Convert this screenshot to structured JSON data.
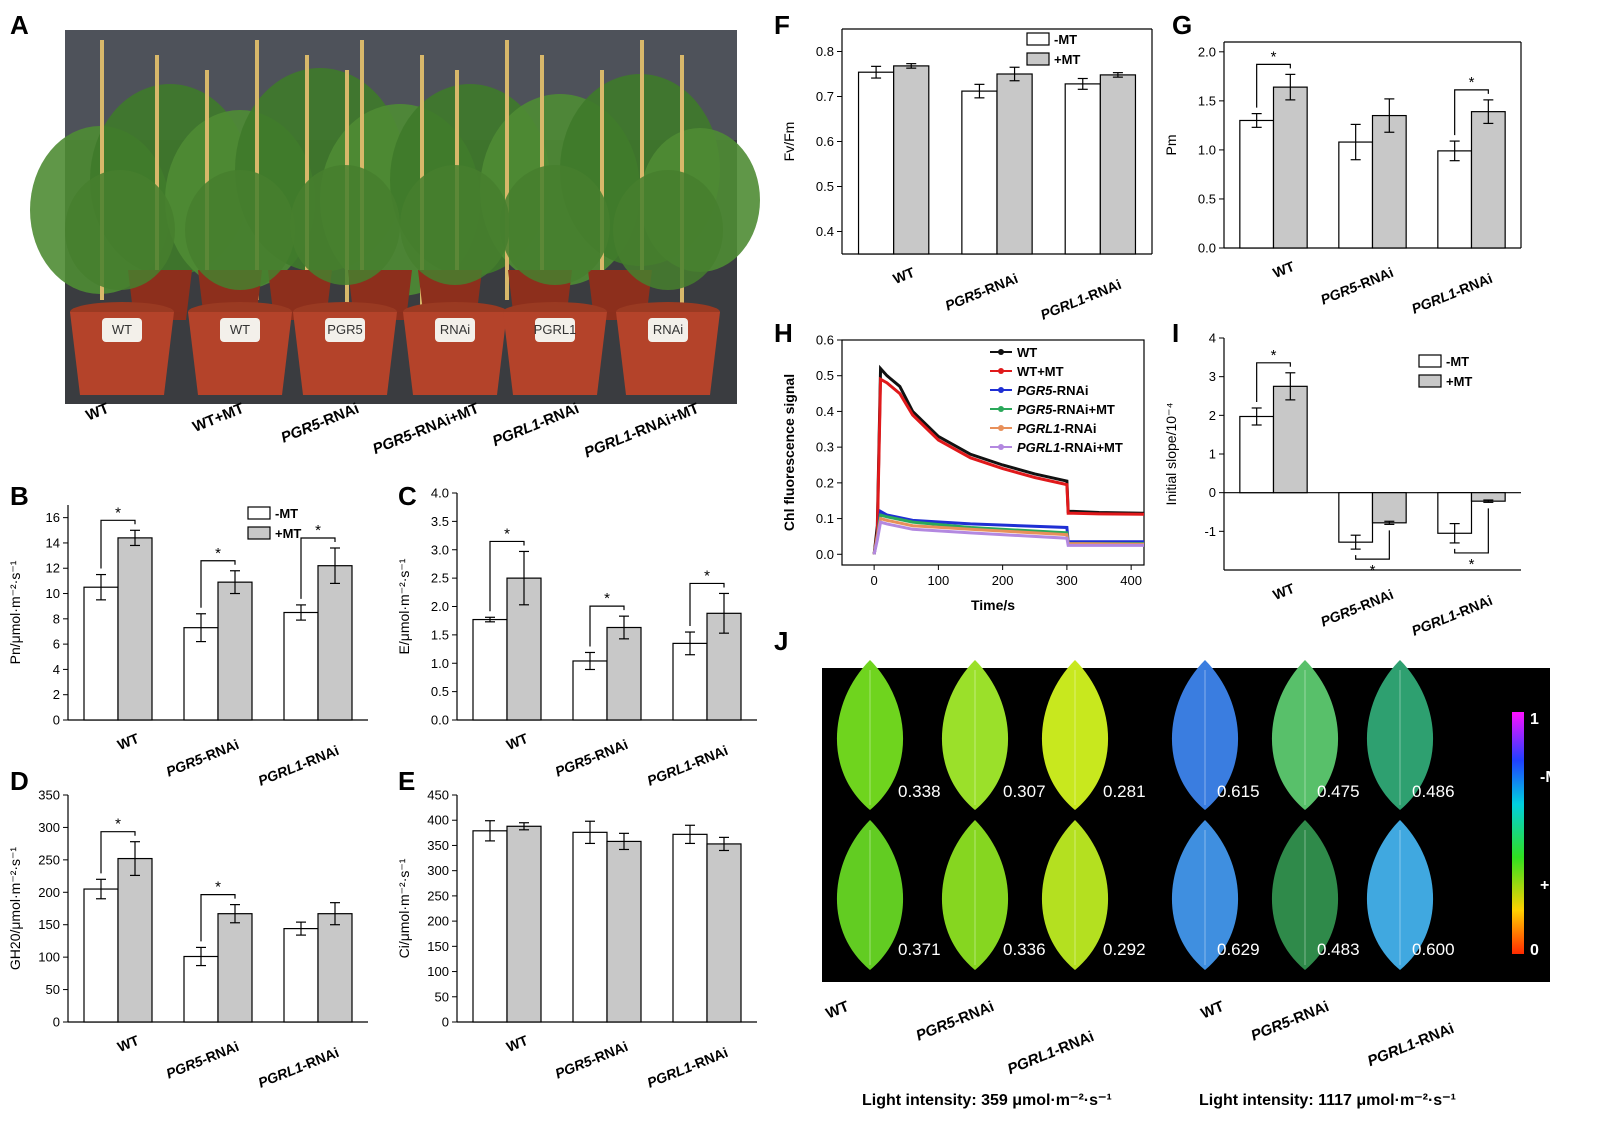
{
  "figure": {
    "panel_labels": [
      "A",
      "B",
      "C",
      "D",
      "E",
      "F",
      "G",
      "H",
      "I",
      "J"
    ],
    "legend_labels": [
      "-MT",
      "+MT"
    ],
    "photo_labels": [
      "WT",
      "WT+MT",
      "PGR5-RNAi",
      "PGR5-RNAi+MT",
      "PGRL1-RNAi",
      "PGRL1-RNAi+MT"
    ],
    "photo_pot_tags": [
      "WT",
      "WT",
      "PGR5",
      "RNAi",
      "PGRL1",
      "RNAi"
    ],
    "genotypes": [
      "WT",
      "PGR5-RNAi",
      "PGRL1-RNAi"
    ],
    "significance_mark": "*",
    "panelJ": {
      "scale_max_label": "1",
      "scale_min_label": "0",
      "scale_top_label": "-MT",
      "scale_bottom_label": "+MT",
      "light_left": "Light intensity: 359 μmol·m⁻²·s⁻¹",
      "light_right": "Light intensity: 1117 μmol·m⁻²·s⁻¹",
      "x_labels": [
        "WT",
        "PGR5-RNAi",
        "PGRL1-RNAi",
        "WT",
        "PGR5-RNAi",
        "PGRL1-RNAi"
      ],
      "leaf_values": [
        [
          "0.338",
          "0.307",
          "0.281",
          "0.615",
          "0.475",
          "0.486"
        ],
        [
          "0.371",
          "0.336",
          "0.292",
          "0.629",
          "0.483",
          "0.600"
        ]
      ],
      "colors": {
        "background": "#000000"
      }
    }
  },
  "chart_data": [
    {
      "panel": "B",
      "type": "bar",
      "ylabel": "Pn/μmol·m⁻²·s⁻¹",
      "ylim": [
        0,
        17
      ],
      "yticks": [
        0,
        2,
        4,
        6,
        8,
        10,
        12,
        14,
        16
      ],
      "categories": [
        "WT",
        "PGR5-RNAi",
        "PGRL1-RNAi"
      ],
      "series": [
        {
          "name": "-MT",
          "values": [
            10.5,
            7.3,
            8.5
          ],
          "errors": [
            1.0,
            1.1,
            0.6
          ]
        },
        {
          "name": "+MT",
          "values": [
            14.4,
            10.9,
            12.2
          ],
          "errors": [
            0.6,
            0.9,
            1.4
          ]
        }
      ],
      "significance": [
        0,
        1,
        2
      ],
      "sig_pos": "above",
      "legend": true
    },
    {
      "panel": "C",
      "type": "bar",
      "ylabel": "E/μmol·m⁻²·s⁻¹",
      "ylim": [
        0,
        4
      ],
      "yticks": [
        0,
        0.5,
        1.0,
        1.5,
        2.0,
        2.5,
        3.0,
        3.5,
        4.0
      ],
      "categories": [
        "WT",
        "PGR5-RNAi",
        "PGRL1-RNAi"
      ],
      "series": [
        {
          "name": "-MT",
          "values": [
            1.77,
            1.04,
            1.35
          ],
          "errors": [
            0.04,
            0.15,
            0.2
          ]
        },
        {
          "name": "+MT",
          "values": [
            2.5,
            1.63,
            1.88
          ],
          "errors": [
            0.47,
            0.2,
            0.35
          ]
        }
      ],
      "significance": [
        0,
        1,
        2
      ],
      "sig_pos": "above",
      "legend": false
    },
    {
      "panel": "D",
      "type": "bar",
      "ylabel": "GH20/μmol·m⁻²·s⁻¹",
      "ylim": [
        0,
        350
      ],
      "yticks": [
        0,
        50,
        100,
        150,
        200,
        250,
        300,
        350
      ],
      "categories": [
        "WT",
        "PGR5-RNAi",
        "PGRL1-RNAi"
      ],
      "series": [
        {
          "name": "-MT",
          "values": [
            205,
            101,
            144
          ],
          "errors": [
            15,
            14,
            10
          ]
        },
        {
          "name": "+MT",
          "values": [
            252,
            167,
            167
          ],
          "errors": [
            26,
            14,
            17
          ]
        }
      ],
      "significance": [
        0,
        1
      ],
      "sig_pos": "above",
      "legend": false
    },
    {
      "panel": "E",
      "type": "bar",
      "ylabel": "Ci/μmol·m⁻²·s⁻¹",
      "ylim": [
        0,
        450
      ],
      "yticks": [
        0,
        50,
        100,
        150,
        200,
        250,
        300,
        350,
        400,
        450
      ],
      "categories": [
        "WT",
        "PGR5-RNAi",
        "PGRL1-RNAi"
      ],
      "series": [
        {
          "name": "-MT",
          "values": [
            379,
            376,
            372
          ],
          "errors": [
            20,
            22,
            18
          ]
        },
        {
          "name": "+MT",
          "values": [
            388,
            358,
            353
          ],
          "errors": [
            7,
            16,
            13
          ]
        }
      ],
      "significance": [],
      "sig_pos": "above",
      "legend": false
    },
    {
      "panel": "F",
      "type": "bar",
      "ylabel": "Fv/Fm",
      "ylim": [
        0.35,
        0.85
      ],
      "yticks": [
        0.4,
        0.5,
        0.6,
        0.7,
        0.8
      ],
      "categories": [
        "WT",
        "PGR5-RNAi",
        "PGRL1-RNAi"
      ],
      "series": [
        {
          "name": "-MT",
          "values": [
            0.754,
            0.712,
            0.728
          ],
          "errors": [
            0.013,
            0.015,
            0.012
          ]
        },
        {
          "name": "+MT",
          "values": [
            0.768,
            0.75,
            0.748
          ],
          "errors": [
            0.005,
            0.015,
            0.005
          ]
        }
      ],
      "significance": [],
      "sig_pos": "above",
      "legend": true
    },
    {
      "panel": "G",
      "type": "bar",
      "ylabel": "Pm",
      "ylim": [
        0,
        2.1
      ],
      "yticks": [
        0.0,
        0.5,
        1.0,
        1.5,
        2.0
      ],
      "categories": [
        "WT",
        "PGR5-RNAi",
        "PGRL1-RNAi"
      ],
      "series": [
        {
          "name": "-MT",
          "values": [
            1.3,
            1.08,
            0.99
          ],
          "errors": [
            0.07,
            0.18,
            0.1
          ]
        },
        {
          "name": "+MT",
          "values": [
            1.64,
            1.35,
            1.39
          ],
          "errors": [
            0.13,
            0.17,
            0.12
          ]
        }
      ],
      "significance": [
        0,
        2
      ],
      "sig_pos": "above",
      "legend": false
    },
    {
      "panel": "H",
      "type": "line",
      "xlabel": "Time/s",
      "ylabel": "Chl  fluorescence signal",
      "xlim": [
        -50,
        420
      ],
      "ylim": [
        -0.03,
        0.6
      ],
      "xticks": [
        0,
        100,
        200,
        300,
        400
      ],
      "yticks": [
        0.0,
        0.1,
        0.2,
        0.3,
        0.4,
        0.5,
        0.6
      ],
      "series": [
        {
          "name": "WT",
          "italic": "",
          "suffix": "WT",
          "color": "#111111",
          "marker": "square",
          "t": [
            0,
            5,
            10,
            20,
            40,
            60,
            100,
            150,
            200,
            250,
            300,
            302,
            310,
            350,
            420
          ],
          "y": [
            0.0,
            0.08,
            0.52,
            0.5,
            0.47,
            0.4,
            0.33,
            0.28,
            0.25,
            0.225,
            0.205,
            0.12,
            0.12,
            0.117,
            0.115
          ]
        },
        {
          "name": "WT+MT",
          "italic": "",
          "suffix": "WT+MT",
          "color": "#e0191b",
          "marker": "circle",
          "t": [
            0,
            5,
            10,
            20,
            40,
            60,
            100,
            150,
            200,
            250,
            300,
            302,
            310,
            350,
            420
          ],
          "y": [
            0.0,
            0.06,
            0.49,
            0.48,
            0.45,
            0.39,
            0.32,
            0.27,
            0.24,
            0.215,
            0.195,
            0.115,
            0.115,
            0.113,
            0.112
          ]
        },
        {
          "name": "PGR5-RNAi",
          "italic": "PGR5",
          "suffix": "-RNAi",
          "color": "#1f2fd4",
          "marker": "triangle-up",
          "t": [
            0,
            5,
            10,
            20,
            60,
            150,
            300,
            302,
            420
          ],
          "y": [
            0.0,
            0.05,
            0.12,
            0.11,
            0.095,
            0.085,
            0.075,
            0.035,
            0.035
          ]
        },
        {
          "name": "PGR5-RNAi+MT",
          "italic": "PGR5",
          "suffix": "-RNAi+MT",
          "color": "#2aa85a",
          "marker": "triangle-down",
          "t": [
            0,
            5,
            10,
            20,
            60,
            150,
            300,
            302,
            420
          ],
          "y": [
            0.0,
            0.05,
            0.11,
            0.105,
            0.09,
            0.075,
            0.06,
            0.03,
            0.03
          ]
        },
        {
          "name": "PGRL1-RNAi",
          "italic": "PGRL1",
          "suffix": "-RNAi",
          "color": "#e8905a",
          "marker": "diamond",
          "t": [
            0,
            5,
            10,
            20,
            60,
            150,
            300,
            302,
            420
          ],
          "y": [
            0.0,
            0.05,
            0.1,
            0.095,
            0.08,
            0.07,
            0.055,
            0.03,
            0.028
          ]
        },
        {
          "name": "PGRL1-RNAi+MT",
          "italic": "PGRL1",
          "suffix": "-RNAi+MT",
          "color": "#b388e0",
          "marker": "triangle-left",
          "t": [
            0,
            5,
            10,
            20,
            60,
            150,
            300,
            302,
            420
          ],
          "y": [
            0.0,
            0.04,
            0.09,
            0.085,
            0.07,
            0.06,
            0.045,
            0.025,
            0.025
          ]
        }
      ]
    },
    {
      "panel": "I",
      "type": "bar",
      "ylabel": "Initial slope/10⁻⁴",
      "ylim": [
        -2,
        4
      ],
      "yticks": [
        -1,
        0,
        1,
        2,
        3,
        4
      ],
      "categories": [
        "WT",
        "PGR5-RNAi",
        "PGRL1-RNAi"
      ],
      "series": [
        {
          "name": "-MT",
          "values": [
            1.97,
            -1.28,
            -1.05
          ],
          "errors": [
            0.22,
            0.18,
            0.25
          ]
        },
        {
          "name": "+MT",
          "values": [
            2.75,
            -0.78,
            -0.22
          ],
          "errors": [
            0.35,
            0.04,
            0.03
          ]
        }
      ],
      "significance": [
        0,
        1,
        2
      ],
      "sig_pos": "mixed",
      "legend": true
    }
  ]
}
